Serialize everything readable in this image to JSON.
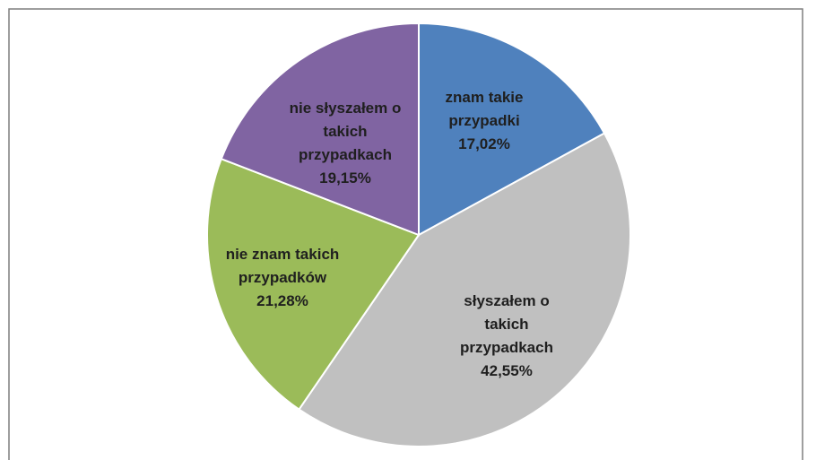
{
  "chart_data": {
    "type": "pie",
    "categories": [
      "znam takie przypadki",
      "słyszałem o takich przypadkach",
      "nie znam takich przypadków",
      "nie słyszałem o takich przypadkach"
    ],
    "values": [
      17.02,
      42.55,
      21.28,
      19.15
    ],
    "value_labels": [
      "17,02%",
      "42,55%",
      "21,28%",
      "19,15%"
    ],
    "colors": [
      "#4f81bd",
      "#c0c0c0",
      "#9bbb59",
      "#8064a2"
    ]
  }
}
